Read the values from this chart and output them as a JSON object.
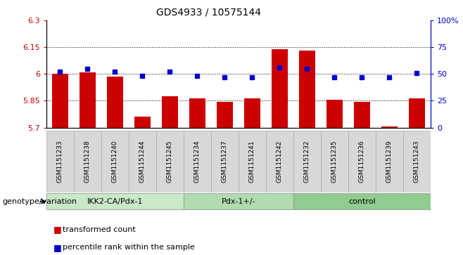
{
  "title": "GDS4933 / 10575144",
  "samples": [
    "GSM1151233",
    "GSM1151238",
    "GSM1151240",
    "GSM1151244",
    "GSM1151245",
    "GSM1151234",
    "GSM1151237",
    "GSM1151241",
    "GSM1151242",
    "GSM1151232",
    "GSM1151235",
    "GSM1151236",
    "GSM1151239",
    "GSM1151243"
  ],
  "red_values": [
    6.0,
    6.01,
    5.985,
    5.76,
    5.875,
    5.862,
    5.845,
    5.865,
    6.14,
    6.13,
    5.855,
    5.845,
    5.705,
    5.865
  ],
  "blue_values": [
    52,
    55,
    52,
    48,
    52,
    48,
    47,
    47,
    56,
    55,
    47,
    47,
    47,
    51
  ],
  "ylim_left": [
    5.7,
    6.3
  ],
  "ylim_right": [
    0,
    100
  ],
  "yticks_left": [
    5.7,
    5.85,
    6.0,
    6.15,
    6.3
  ],
  "yticks_right": [
    0,
    25,
    50,
    75,
    100
  ],
  "ytick_labels_left": [
    "5.7",
    "5.85",
    "6",
    "6.15",
    "6.3"
  ],
  "ytick_labels_right": [
    "0",
    "25",
    "50",
    "75",
    "100%"
  ],
  "hlines": [
    5.85,
    6.0,
    6.15
  ],
  "groups": [
    {
      "label": "IKK2-CA/Pdx-1",
      "start": 0,
      "end": 5
    },
    {
      "label": "Pdx-1+/-",
      "start": 5,
      "end": 9
    },
    {
      "label": "control",
      "start": 9,
      "end": 14
    }
  ],
  "group_colors": [
    "#c8e8c8",
    "#b0dcb0",
    "#90cc90"
  ],
  "bar_color": "#cc0000",
  "dot_color": "#0000cc",
  "bar_bottom": 5.7,
  "legend_items": [
    {
      "color": "#cc0000",
      "label": "transformed count"
    },
    {
      "color": "#0000cc",
      "label": "percentile rank within the sample"
    }
  ],
  "group_label": "genotype/variation",
  "sample_box_color": "#d8d8d8"
}
